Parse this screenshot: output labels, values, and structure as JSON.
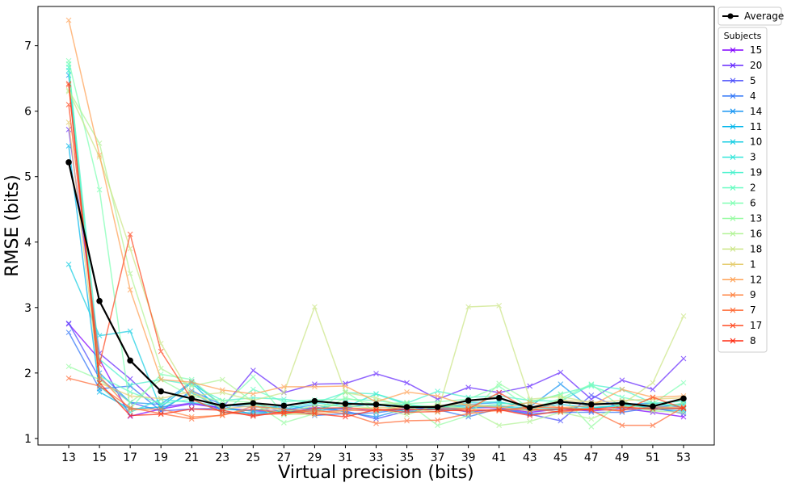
{
  "chart_data": {
    "type": "line",
    "title": "",
    "xlabel": "Virtual precision (bits)",
    "ylabel": "RMSE (bits)",
    "x": [
      13,
      15,
      17,
      19,
      21,
      23,
      25,
      27,
      29,
      31,
      33,
      35,
      37,
      39,
      41,
      43,
      45,
      47,
      49,
      51,
      53
    ],
    "xlim": [
      11,
      55
    ],
    "ylim": [
      0.9,
      7.6
    ],
    "yticks": [
      1,
      2,
      3,
      4,
      5,
      6,
      7
    ],
    "grid": false,
    "legend_placement": "outside top-right",
    "legend_title": "Subjects",
    "average": {
      "name": "Average",
      "color": "#000000",
      "values": [
        5.22,
        3.1,
        2.19,
        1.72,
        1.61,
        1.5,
        1.54,
        1.5,
        1.57,
        1.53,
        1.52,
        1.48,
        1.48,
        1.58,
        1.62,
        1.47,
        1.56,
        1.52,
        1.54,
        1.49,
        1.61
      ]
    },
    "series": [
      {
        "name": "15",
        "color": "#8000ff",
        "values": [
          2.75,
          2.21,
          1.34,
          1.45,
          1.53,
          1.46,
          1.43,
          1.43,
          1.47,
          1.45,
          1.42,
          1.45,
          1.45,
          1.47,
          1.47,
          1.4,
          1.45,
          1.42,
          1.46,
          1.4,
          1.33
        ]
      },
      {
        "name": "20",
        "color": "#6629fe",
        "values": [
          5.72,
          2.3,
          1.91,
          1.48,
          1.54,
          1.47,
          2.04,
          1.7,
          1.83,
          1.84,
          1.99,
          1.85,
          1.6,
          1.78,
          1.7,
          1.8,
          2.01,
          1.6,
          1.89,
          1.75,
          2.22
        ]
      },
      {
        "name": "5",
        "color": "#4c50fc",
        "values": [
          2.76,
          1.92,
          1.55,
          1.42,
          1.45,
          1.46,
          1.42,
          1.4,
          1.45,
          1.42,
          1.3,
          1.42,
          1.5,
          1.4,
          1.45,
          1.37,
          1.27,
          1.66,
          1.45,
          1.47,
          1.38
        ]
      },
      {
        "name": "4",
        "color": "#3176f8",
        "values": [
          2.62,
          1.76,
          1.8,
          1.42,
          1.73,
          1.51,
          1.48,
          1.48,
          1.35,
          1.38,
          1.39,
          1.46,
          1.44,
          1.33,
          1.46,
          1.38,
          1.4,
          1.4,
          1.4,
          1.47,
          1.52
        ]
      },
      {
        "name": "14",
        "color": "#1996f3",
        "values": [
          6.55,
          2.0,
          1.55,
          1.52,
          1.87,
          1.5,
          1.36,
          1.43,
          1.52,
          1.4,
          1.33,
          1.46,
          1.48,
          1.52,
          1.55,
          1.48,
          1.83,
          1.45,
          1.52,
          1.54,
          1.47
        ]
      },
      {
        "name": "11",
        "color": "#00b5eb",
        "values": [
          5.47,
          1.71,
          1.45,
          1.48,
          1.85,
          1.4,
          1.39,
          1.42,
          1.42,
          1.47,
          1.54,
          1.4,
          1.47,
          1.5,
          1.49,
          1.43,
          1.44,
          1.52,
          1.55,
          1.45,
          1.42
        ]
      },
      {
        "name": "10",
        "color": "#19cee3",
        "values": [
          3.66,
          2.57,
          2.64,
          1.45,
          1.7,
          1.45,
          1.42,
          1.51,
          1.44,
          1.55,
          1.5,
          1.52,
          1.44,
          1.46,
          1.5,
          1.46,
          1.52,
          1.47,
          1.5,
          1.48,
          1.45
        ]
      },
      {
        "name": "3",
        "color": "#32e6da",
        "values": [
          6.62,
          1.8,
          1.4,
          1.6,
          1.55,
          1.5,
          1.52,
          1.45,
          1.55,
          1.48,
          1.68,
          1.52,
          1.45,
          1.55,
          1.56,
          1.47,
          1.45,
          1.47,
          1.51,
          1.5,
          1.53
        ]
      },
      {
        "name": "19",
        "color": "#4cf2ce",
        "values": [
          6.67,
          2.21,
          1.82,
          1.9,
          1.82,
          1.58,
          1.62,
          1.6,
          1.54,
          1.7,
          1.68,
          1.54,
          1.72,
          1.63,
          1.65,
          1.58,
          1.57,
          1.82,
          1.75,
          1.54,
          1.57
        ]
      },
      {
        "name": "2",
        "color": "#66fcc1",
        "values": [
          6.72,
          1.95,
          1.71,
          1.53,
          1.6,
          1.4,
          1.75,
          1.56,
          1.59,
          1.6,
          1.58,
          1.51,
          1.49,
          1.47,
          1.53,
          1.54,
          1.68,
          1.8,
          1.63,
          1.53,
          1.5
        ]
      },
      {
        "name": "6",
        "color": "#80ffb4",
        "values": [
          6.77,
          4.8,
          1.45,
          1.98,
          1.9,
          1.5,
          1.94,
          1.36,
          1.4,
          1.72,
          1.4,
          1.53,
          1.56,
          1.6,
          1.8,
          1.45,
          1.61,
          1.83,
          1.47,
          1.53,
          1.85
        ]
      },
      {
        "name": "13",
        "color": "#99fca4",
        "values": [
          2.1,
          1.9,
          1.55,
          1.9,
          1.64,
          1.58,
          1.55,
          1.24,
          1.38,
          1.62,
          1.52,
          1.55,
          1.2,
          1.35,
          1.84,
          1.56,
          1.67,
          1.18,
          1.57,
          1.42,
          1.55
        ]
      },
      {
        "name": "16",
        "color": "#b2f396",
        "values": [
          6.32,
          5.51,
          3.52,
          2.07,
          1.8,
          1.9,
          1.56,
          1.4,
          1.5,
          1.5,
          1.46,
          1.36,
          1.52,
          1.45,
          1.2,
          1.26,
          1.4,
          1.3,
          1.5,
          1.42,
          1.4
        ]
      },
      {
        "name": "18",
        "color": "#cce687",
        "values": [
          6.3,
          5.3,
          3.9,
          2.45,
          1.65,
          1.7,
          1.58,
          1.7,
          3.01,
          1.7,
          1.62,
          1.47,
          1.4,
          3.01,
          3.03,
          1.6,
          1.64,
          1.55,
          1.52,
          1.85,
          2.87
        ]
      },
      {
        "name": "1",
        "color": "#e6ce73",
        "values": [
          5.83,
          1.85,
          1.65,
          1.61,
          1.72,
          1.45,
          1.5,
          1.38,
          1.36,
          1.43,
          1.47,
          1.47,
          1.5,
          1.52,
          1.48,
          1.42,
          1.59,
          1.55,
          1.58,
          1.6,
          1.62
        ]
      },
      {
        "name": "12",
        "color": "#ffa256",
        "values": [
          7.39,
          5.33,
          3.27,
          1.9,
          1.86,
          1.74,
          1.68,
          1.79,
          1.79,
          1.8,
          1.56,
          1.71,
          1.65,
          1.5,
          1.47,
          1.55,
          1.47,
          1.5,
          1.75,
          1.63,
          1.65
        ]
      },
      {
        "name": "9",
        "color": "#ff8646",
        "values": [
          6.4,
          1.95,
          1.44,
          1.45,
          1.33,
          1.35,
          1.49,
          1.45,
          1.4,
          1.43,
          1.42,
          1.48,
          1.47,
          1.45,
          1.42,
          1.46,
          1.4,
          1.45,
          1.43,
          1.48,
          1.47
        ]
      },
      {
        "name": "7",
        "color": "#ff6a35",
        "values": [
          1.92,
          1.8,
          1.47,
          1.38,
          1.3,
          1.36,
          1.45,
          1.38,
          1.43,
          1.38,
          1.23,
          1.27,
          1.28,
          1.38,
          1.43,
          1.48,
          1.47,
          1.43,
          1.2,
          1.2,
          1.48
        ]
      },
      {
        "name": "17",
        "color": "#ff4b23",
        "values": [
          6.1,
          2.13,
          4.12,
          2.33,
          1.6,
          1.4,
          1.36,
          1.38,
          1.46,
          1.47,
          1.44,
          1.4,
          1.41,
          1.45,
          1.7,
          1.43,
          1.45,
          1.45,
          1.42,
          1.63,
          1.46
        ]
      },
      {
        "name": "8",
        "color": "#ff2b12",
        "values": [
          6.42,
          1.85,
          1.35,
          1.37,
          1.45,
          1.43,
          1.34,
          1.41,
          1.38,
          1.33,
          1.44,
          1.44,
          1.44,
          1.42,
          1.44,
          1.35,
          1.42,
          1.45,
          1.48,
          1.45,
          1.46
        ]
      }
    ]
  }
}
